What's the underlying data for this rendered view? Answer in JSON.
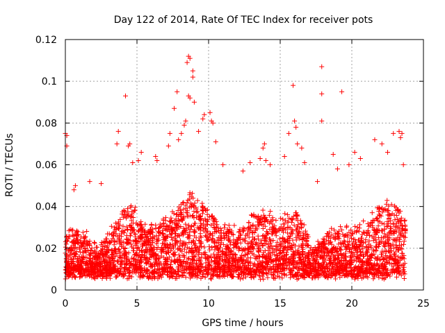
{
  "chart_data": {
    "type": "scatter",
    "title": "Day 122 of 2014, Rate Of TEC Index for receiver pots",
    "xlabel": "GPS time / hours",
    "ylabel": "ROTI / TECUs",
    "xlim": [
      0,
      25
    ],
    "ylim": [
      0,
      0.12
    ],
    "xticks": [
      0,
      5,
      10,
      15,
      20,
      25
    ],
    "xtick_labels": [
      "0",
      "5",
      "10",
      "15",
      "20",
      "25"
    ],
    "yticks": [
      0,
      0.02,
      0.04,
      0.06,
      0.08,
      0.1,
      0.12
    ],
    "ytick_labels": [
      "0",
      "0.02",
      "0.04",
      "0.06",
      "0.08",
      "0.1",
      "0.12"
    ],
    "grid": true,
    "marker": "+",
    "color": "#ff0000",
    "x_extent_hours": [
      0,
      23.75
    ],
    "dense_band": [
      0.005,
      0.04
    ],
    "outliers": [
      {
        "x": 0.0,
        "y": 0.075
      },
      {
        "x": 0.1,
        "y": 0.074
      },
      {
        "x": 0.1,
        "y": 0.069
      },
      {
        "x": 0.6,
        "y": 0.048
      },
      {
        "x": 0.7,
        "y": 0.05
      },
      {
        "x": 1.7,
        "y": 0.052
      },
      {
        "x": 2.5,
        "y": 0.051
      },
      {
        "x": 3.6,
        "y": 0.07
      },
      {
        "x": 3.7,
        "y": 0.076
      },
      {
        "x": 4.2,
        "y": 0.093
      },
      {
        "x": 4.4,
        "y": 0.069
      },
      {
        "x": 4.5,
        "y": 0.07
      },
      {
        "x": 4.7,
        "y": 0.061
      },
      {
        "x": 5.1,
        "y": 0.062
      },
      {
        "x": 5.3,
        "y": 0.066
      },
      {
        "x": 6.3,
        "y": 0.064
      },
      {
        "x": 6.4,
        "y": 0.062
      },
      {
        "x": 7.2,
        "y": 0.069
      },
      {
        "x": 7.3,
        "y": 0.075
      },
      {
        "x": 7.6,
        "y": 0.087
      },
      {
        "x": 7.8,
        "y": 0.095
      },
      {
        "x": 7.9,
        "y": 0.072
      },
      {
        "x": 8.1,
        "y": 0.075
      },
      {
        "x": 8.3,
        "y": 0.079
      },
      {
        "x": 8.4,
        "y": 0.081
      },
      {
        "x": 8.5,
        "y": 0.109
      },
      {
        "x": 8.6,
        "y": 0.112
      },
      {
        "x": 8.7,
        "y": 0.111
      },
      {
        "x": 8.6,
        "y": 0.093
      },
      {
        "x": 8.7,
        "y": 0.092
      },
      {
        "x": 8.9,
        "y": 0.105
      },
      {
        "x": 8.9,
        "y": 0.102
      },
      {
        "x": 9.0,
        "y": 0.09
      },
      {
        "x": 9.3,
        "y": 0.076
      },
      {
        "x": 9.6,
        "y": 0.082
      },
      {
        "x": 9.7,
        "y": 0.084
      },
      {
        "x": 10.1,
        "y": 0.085
      },
      {
        "x": 10.2,
        "y": 0.081
      },
      {
        "x": 10.3,
        "y": 0.08
      },
      {
        "x": 10.5,
        "y": 0.071
      },
      {
        "x": 11.0,
        "y": 0.06
      },
      {
        "x": 12.4,
        "y": 0.057
      },
      {
        "x": 12.9,
        "y": 0.061
      },
      {
        "x": 13.6,
        "y": 0.063
      },
      {
        "x": 13.8,
        "y": 0.068
      },
      {
        "x": 13.9,
        "y": 0.07
      },
      {
        "x": 14.0,
        "y": 0.062
      },
      {
        "x": 14.3,
        "y": 0.06
      },
      {
        "x": 15.3,
        "y": 0.064
      },
      {
        "x": 15.6,
        "y": 0.075
      },
      {
        "x": 15.9,
        "y": 0.098
      },
      {
        "x": 16.0,
        "y": 0.081
      },
      {
        "x": 16.1,
        "y": 0.078
      },
      {
        "x": 16.2,
        "y": 0.07
      },
      {
        "x": 16.5,
        "y": 0.068
      },
      {
        "x": 16.7,
        "y": 0.061
      },
      {
        "x": 17.6,
        "y": 0.052
      },
      {
        "x": 17.9,
        "y": 0.107
      },
      {
        "x": 17.9,
        "y": 0.094
      },
      {
        "x": 17.9,
        "y": 0.081
      },
      {
        "x": 18.7,
        "y": 0.065
      },
      {
        "x": 19.0,
        "y": 0.058
      },
      {
        "x": 19.3,
        "y": 0.095
      },
      {
        "x": 19.8,
        "y": 0.06
      },
      {
        "x": 20.2,
        "y": 0.066
      },
      {
        "x": 20.6,
        "y": 0.063
      },
      {
        "x": 21.6,
        "y": 0.072
      },
      {
        "x": 22.1,
        "y": 0.07
      },
      {
        "x": 22.5,
        "y": 0.066
      },
      {
        "x": 22.9,
        "y": 0.075
      },
      {
        "x": 23.3,
        "y": 0.076
      },
      {
        "x": 23.4,
        "y": 0.073
      },
      {
        "x": 23.5,
        "y": 0.075
      },
      {
        "x": 23.6,
        "y": 0.06
      }
    ]
  }
}
